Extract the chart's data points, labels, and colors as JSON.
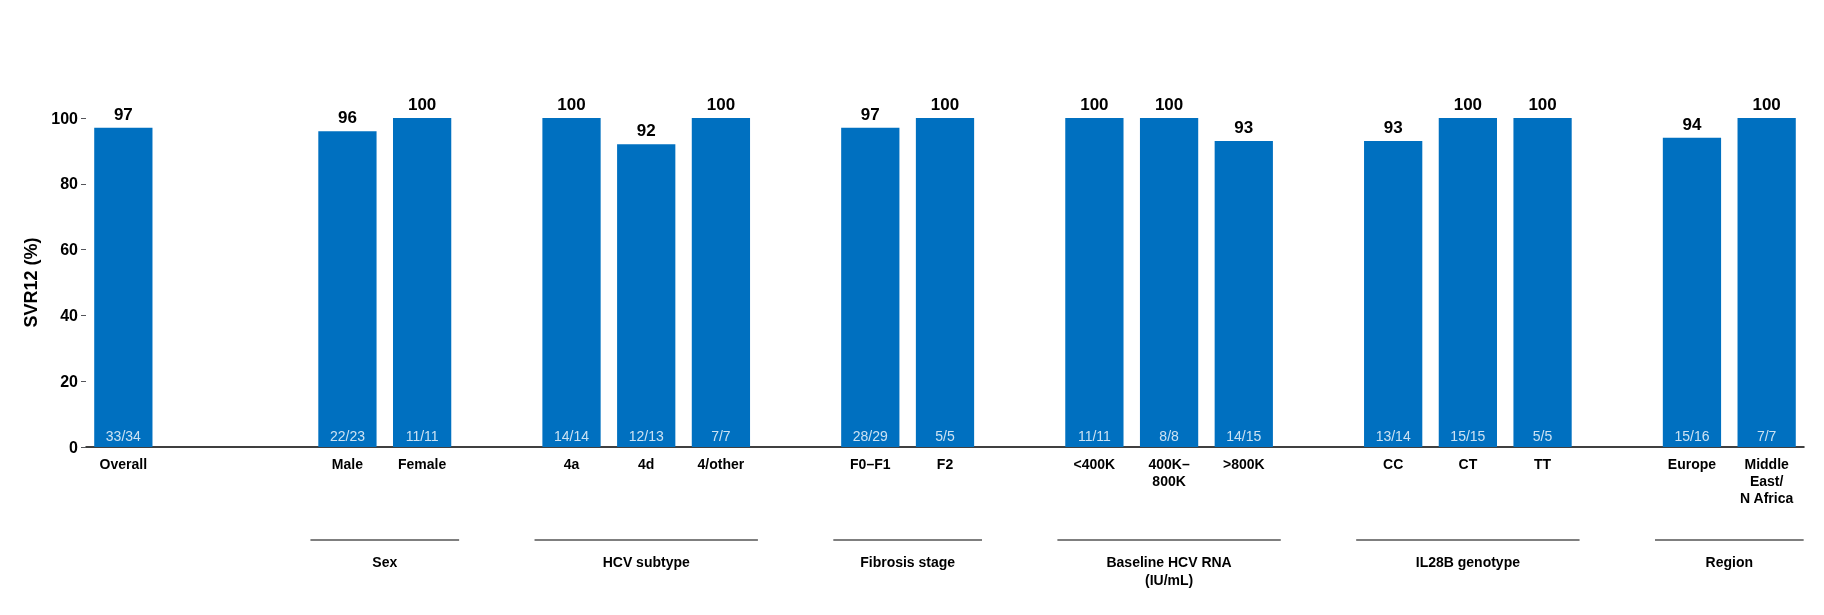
{
  "chart_data": {
    "type": "bar",
    "ylabel": "SVR12 (%)",
    "categories": [
      "Overall",
      null,
      null,
      "Male",
      "Female",
      null,
      "4a",
      "4d",
      "4/other",
      null,
      "F0–F1",
      "F2",
      null,
      "<400K",
      "400K–\n800K",
      ">800K",
      null,
      "CC",
      "CT",
      "TT",
      null,
      "Europe",
      "Middle\nEast/\nN Africa"
    ],
    "values": [
      97,
      null,
      null,
      96,
      100,
      null,
      100,
      92,
      100,
      null,
      97,
      100,
      null,
      100,
      100,
      93,
      null,
      93,
      100,
      100,
      null,
      94,
      100
    ],
    "color": "#0070c0",
    "ylim": [
      0,
      100
    ],
    "yticks": [
      0,
      20,
      40,
      60,
      80,
      100
    ],
    "grid": false,
    "data_labels": true,
    "annotations": [
      {
        "text": "33/34",
        "x": "Overall",
        "y": 0
      },
      {
        "text": "22/23",
        "x": "Male",
        "y": 0
      },
      {
        "text": "11/11",
        "x": "Female",
        "y": 0
      },
      {
        "text": "14/14",
        "x": "4a",
        "y": 0
      },
      {
        "text": "12/13",
        "x": "4d",
        "y": 0
      },
      {
        "text": "7/7",
        "x": "4/other",
        "y": 0
      },
      {
        "text": "28/29",
        "x": "F0–F1",
        "y": 0
      },
      {
        "text": "5/5",
        "x": "F2",
        "y": 0
      },
      {
        "text": "11/11",
        "x": "<400K",
        "y": 0
      },
      {
        "text": "8/8",
        "x": "400K–\n800K",
        "y": 0
      },
      {
        "text": "14/15",
        "x": ">800K",
        "y": 0
      },
      {
        "text": "13/14",
        "x": "CC",
        "y": 0
      },
      {
        "text": "15/15",
        "x": "CT",
        "y": 0
      },
      {
        "text": "5/5",
        "x": "TT",
        "y": 0
      },
      {
        "text": "15/16",
        "x": "Europe",
        "y": 0
      },
      {
        "text": "7/7",
        "x": "Middle\nEast/\nN Africa",
        "y": 0
      },
      "Sex",
      "HCV subtype",
      "Fibrosis stage",
      "Baseline HCV RNA\n(IU/mL)",
      "IL28B genotype",
      "Region"
    ]
  }
}
